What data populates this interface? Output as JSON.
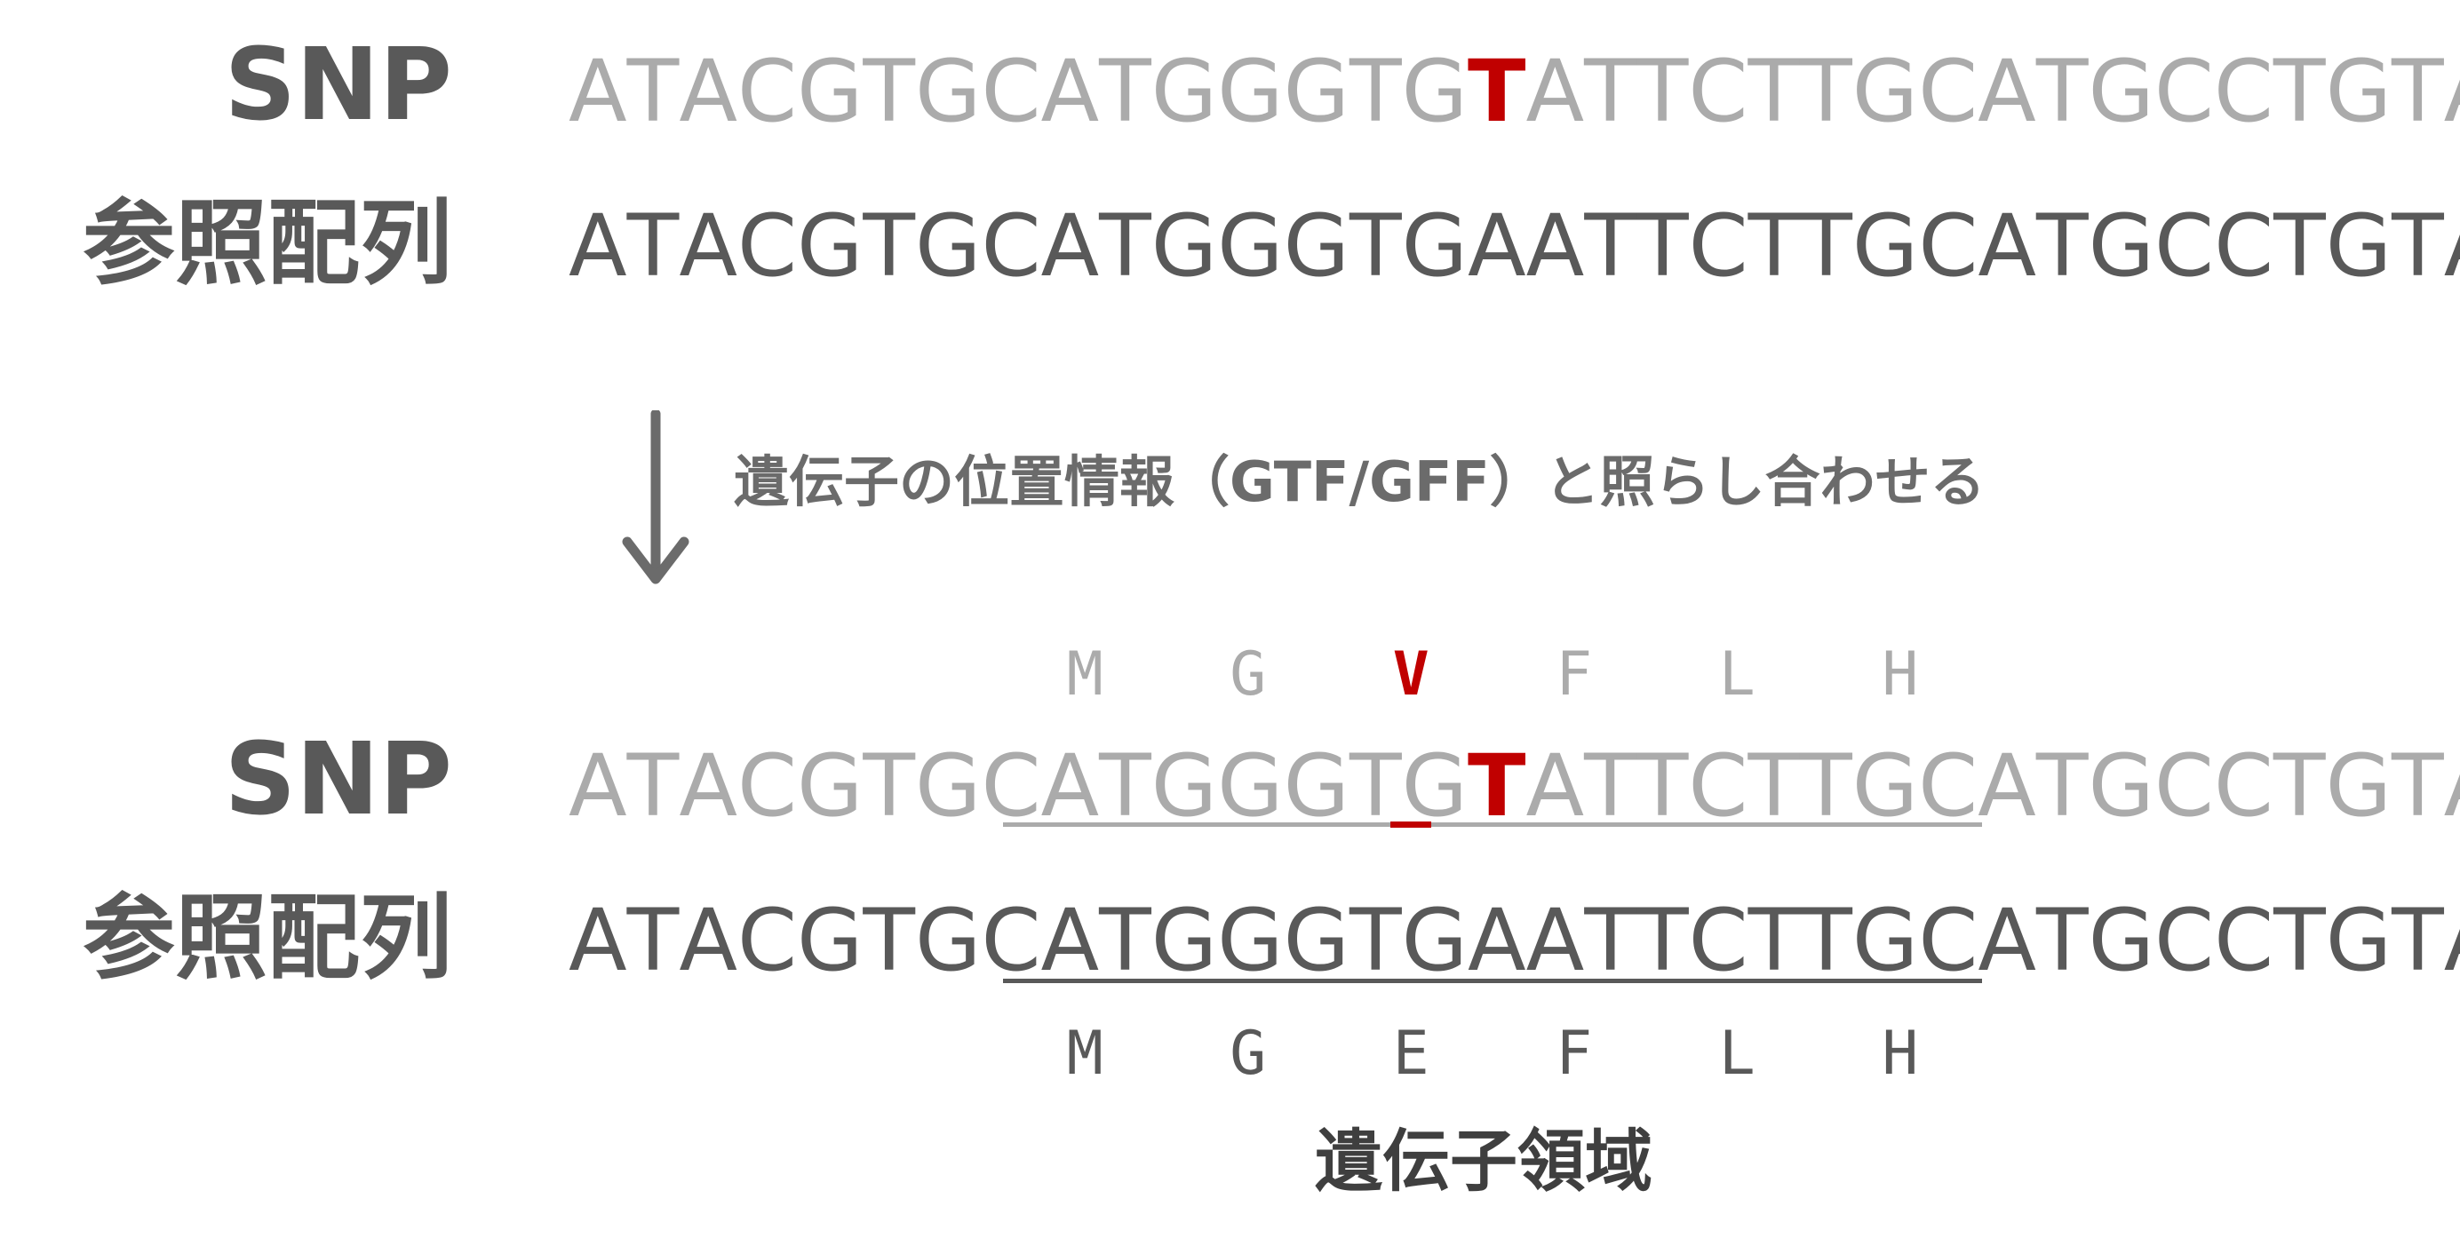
{
  "top_section": {
    "snp_label": "SNP",
    "ref_label": "参照配列",
    "snp_sequence": "ATACGTGCATGGGTGTATTCTTGCATGCCTGTAT",
    "ref_sequence": "ATACGTGCATGGGTGAATTCTTGCATGCCTGTAT"
  },
  "step": {
    "text": "遺伝子の位置情報（GTF/GFF）と照らし合わせる",
    "icon": "down-arrow-icon"
  },
  "bottom_section": {
    "snp_label": "SNP",
    "ref_label": "参照配列",
    "snp_sequence": "ATACGTGCATGGGTGTATTCTTGCATGCCTGTAT",
    "ref_sequence": "ATACGTGCATGGGTGAATTCTTGCATGCCTGTAT",
    "snp_amino_acids": [
      "M",
      "G",
      "V",
      "F",
      "L",
      "H"
    ],
    "ref_amino_acids": [
      "M",
      "G",
      "E",
      "F",
      "L",
      "H"
    ],
    "region_label": "遺伝子領域"
  },
  "highlight": {
    "mutation_index": 15,
    "mutated_codon_index": 2,
    "gene_start_index": 8,
    "gene_end_index": 25
  },
  "colors": {
    "mutation": "#c00000",
    "snp_text": "#ababab",
    "ref_text": "#595959",
    "label_text": "#595959"
  }
}
